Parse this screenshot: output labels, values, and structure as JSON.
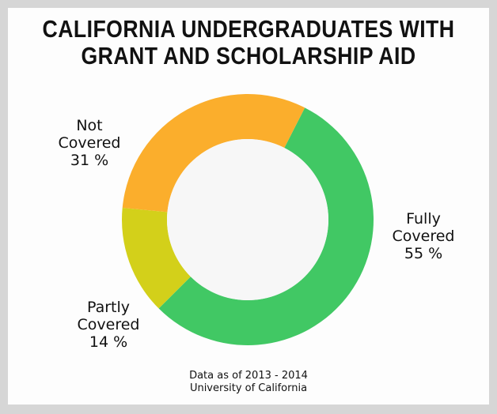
{
  "chart_data": {
    "type": "pie",
    "style": "donut",
    "title_lines": [
      "CALIFORNIA UNDERGRADUATES WITH",
      "GRANT AND SCHOLARSHIP AID"
    ],
    "slices": [
      {
        "name_lines": [
          "Fully",
          "Covered"
        ],
        "value": 55,
        "value_label": "55 %",
        "color": "#41c864"
      },
      {
        "name_lines": [
          "Partly",
          "Covered"
        ],
        "value": 14,
        "value_label": "14 %",
        "color": "#d3d01a"
      },
      {
        "name_lines": [
          "Not",
          "Covered"
        ],
        "value": 31,
        "value_label": "31 %",
        "color": "#fbae2c"
      }
    ],
    "source_lines": [
      "Data as of 2013 - 2014",
      "University of California"
    ]
  }
}
